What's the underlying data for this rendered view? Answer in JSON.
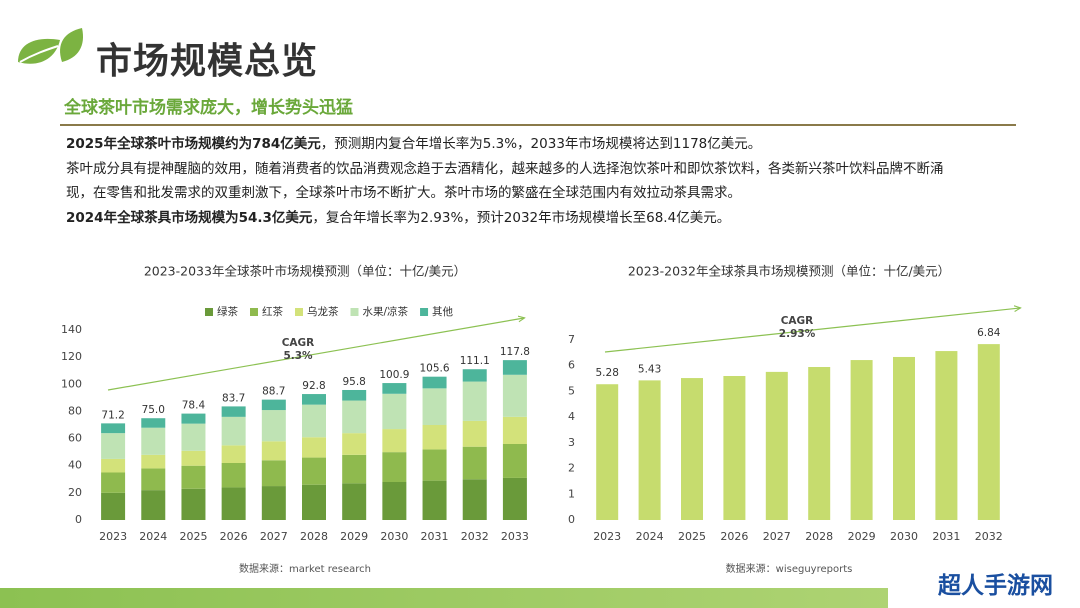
{
  "header": {
    "title": "市场规模总览",
    "subtitle": "全球茶叶市场需求庞大，增长势头迅猛"
  },
  "paragraphs": [
    [
      {
        "text": "2025年全球茶叶市场规模约为784亿美元",
        "bold": true
      },
      {
        "text": "，预测期内复合年增长率为5.3%，2033年市场规模将达到1178亿美元。",
        "bold": false
      }
    ],
    [
      {
        "text": "茶叶成分具有提神醒脑的效用，随着消费者的饮品消费观念趋于去酒精化，越来越多的人选择泡饮茶叶和即饮茶饮料，各类新兴茶叶饮料品牌不断涌现，在零售和批发需求的双重刺激下，全球茶叶市场不断扩大。茶叶市场的繁盛在全球范围内有效拉动茶具需求。",
        "bold": false
      }
    ],
    [
      {
        "text": "2024年全球茶具市场规模为54.3亿美元",
        "bold": true
      },
      {
        "text": "，复合年增长率为2.93%，预计2032年市场规模增长至68.4亿美元。",
        "bold": false
      }
    ]
  ],
  "chart_data": [
    {
      "type": "stacked_bar",
      "title": "2023-2033年全球茶叶市场规模预测（单位：十亿/美元）",
      "categories": [
        "2023",
        "2024",
        "2025",
        "2026",
        "2027",
        "2028",
        "2029",
        "2030",
        "2031",
        "2032",
        "2033"
      ],
      "series": [
        {
          "name": "绿茶",
          "color": "#6a9a3a",
          "values": [
            20,
            22,
            23,
            24,
            25,
            26,
            27,
            28,
            29,
            30,
            31
          ]
        },
        {
          "name": "红茶",
          "color": "#8fba4e",
          "values": [
            15,
            16,
            17,
            18,
            19,
            20,
            21,
            22,
            23,
            24,
            25
          ]
        },
        {
          "name": "乌龙茶",
          "color": "#d3e27a",
          "values": [
            10,
            10,
            11,
            13,
            14,
            15,
            16,
            17,
            18,
            19,
            20
          ]
        },
        {
          "name": "水果/凉茶",
          "color": "#bfe3b4",
          "values": [
            19,
            20,
            20,
            21,
            23,
            24,
            24,
            26,
            27,
            29,
            31
          ]
        },
        {
          "name": "其他",
          "color": "#4db59b",
          "values": [
            7.2,
            7,
            7.4,
            7.7,
            7.7,
            7.8,
            7.8,
            7.9,
            8.6,
            9.1,
            10.8
          ]
        }
      ],
      "totals": {
        "values": [
          71.2,
          75,
          78.4,
          83.7,
          88.7,
          92.8,
          95.8,
          100.9,
          105.6,
          111.1,
          117.8
        ],
        "value_labels": [
          "71.2",
          "75.0",
          "78.4",
          "83.7",
          "88.7",
          "92.8",
          "95.8",
          "100.9",
          "105.6",
          "111.1",
          "117.8"
        ]
      },
      "ylim": [
        0,
        140
      ],
      "yticks": [
        0,
        20,
        40,
        60,
        80,
        100,
        120,
        140
      ],
      "annotations": [
        "CAGR",
        "5.3%"
      ],
      "source": "数据来源：market research"
    },
    {
      "type": "bar",
      "title": "2023-2032年全球茶具市场规模预测（单位：十亿/美元）",
      "categories": [
        "2023",
        "2024",
        "2025",
        "2026",
        "2027",
        "2028",
        "2029",
        "2030",
        "2031",
        "2032"
      ],
      "values": [
        5.28,
        5.43,
        5.52,
        5.6,
        5.76,
        5.95,
        6.22,
        6.34,
        6.57,
        6.84
      ],
      "value_labels": [
        "5.28",
        "5.43",
        null,
        null,
        null,
        null,
        null,
        null,
        null,
        "6.84"
      ],
      "color": "#c6dc6e",
      "ylim": [
        0,
        7
      ],
      "yticks": [
        0,
        1,
        2,
        3,
        4,
        5,
        6,
        7
      ],
      "annotations": [
        "CAGR",
        "2.93%"
      ],
      "source": "数据来源：wiseguyreports"
    }
  ],
  "watermark": "超人手游网"
}
